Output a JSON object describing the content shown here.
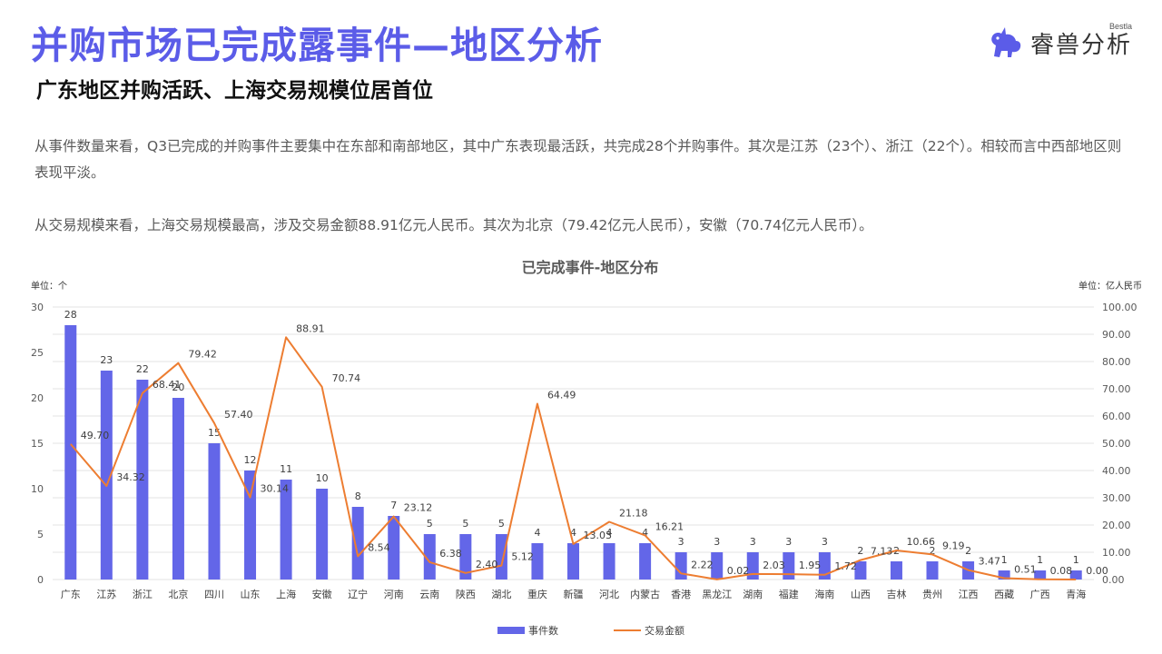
{
  "header": {
    "title": "并购市场已完成露事件—地区分析",
    "subtitle": "广东地区并购活跃、上海交易规模位居首位"
  },
  "logo": {
    "brand_small": "Bestla",
    "brand_text": "睿兽分析"
  },
  "body": {
    "paragraph1": "从事件数量来看，Q3已完成的并购事件主要集中在东部和南部地区，其中广东表现最活跃，共完成28个并购事件。其次是江苏（23个）、浙江（22个）。相较而言中西部地区则表现平淡。",
    "paragraph2": "从交易规模来看，上海交易规模最高，涉及交易金额88.91亿元人民币。其次为北京（79.42亿元人民币），安徽（70.74亿元人民币）。"
  },
  "colors": {
    "title": "#5b5ce8",
    "bar": "#6366e8",
    "line": "#ed7d31"
  },
  "chart_data": {
    "type": "bar",
    "title": "已完成事件-地区分布",
    "left_unit": "单位：个",
    "right_unit": "单位：亿人民币",
    "categories": [
      "广东",
      "江苏",
      "浙江",
      "北京",
      "四川",
      "山东",
      "上海",
      "安徽",
      "辽宁",
      "河南",
      "云南",
      "陕西",
      "湖北",
      "重庆",
      "新疆",
      "河北",
      "内蒙古",
      "香港",
      "黑龙江",
      "湖南",
      "福建",
      "海南",
      "山西",
      "吉林",
      "贵州",
      "江西",
      "西藏",
      "广西",
      "青海"
    ],
    "series": [
      {
        "name": "事件数",
        "type": "bar",
        "axis": "left",
        "values": [
          28,
          23,
          22,
          20,
          15,
          12,
          11,
          10,
          8,
          7,
          5,
          5,
          5,
          4,
          4,
          4,
          4,
          3,
          3,
          3,
          3,
          3,
          2,
          2,
          2,
          2,
          1,
          1,
          1
        ],
        "labels": [
          "28",
          "23",
          "22",
          "20",
          "15",
          "12",
          "11",
          "10",
          "8",
          "7",
          "5",
          "5",
          "5",
          "4",
          "4",
          "4",
          "4",
          "3",
          "3",
          "3",
          "3",
          "3",
          "2",
          "2",
          "2",
          "2",
          "1",
          "1",
          "1"
        ]
      },
      {
        "name": "交易金额",
        "type": "line",
        "axis": "right",
        "values": [
          49.7,
          34.32,
          68.41,
          79.42,
          57.4,
          30.14,
          88.91,
          70.74,
          8.54,
          23.12,
          6.38,
          2.4,
          5.12,
          64.49,
          13.03,
          21.18,
          16.21,
          2.22,
          0.02,
          2.03,
          1.95,
          1.72,
          7.13,
          10.66,
          9.19,
          3.47,
          0.51,
          0.08,
          0.0
        ],
        "labels": [
          "49.70",
          "34.32",
          "68.41",
          "79.42",
          "57.40",
          "30.14",
          "88.91",
          "70.74",
          "8.54",
          "23.12",
          "6.38",
          "2.40",
          "5.12",
          "64.49",
          "13.03",
          "21.18",
          "16.21",
          "2.22",
          "0.02",
          "2.03",
          "1.95",
          "1.72",
          "7.13",
          "10.66",
          "9.19",
          "3.47",
          "0.51",
          "0.08",
          "0.00"
        ]
      }
    ],
    "y_left": {
      "min": 0,
      "max": 30,
      "ticks": [
        "0",
        "5",
        "10",
        "15",
        "20",
        "25",
        "30"
      ]
    },
    "y_right": {
      "min": 0,
      "max": 100,
      "ticks": [
        "0.00",
        "10.00",
        "20.00",
        "30.00",
        "40.00",
        "50.00",
        "60.00",
        "70.00",
        "80.00",
        "90.00",
        "100.00"
      ]
    },
    "grid": true,
    "legend_position": "bottom"
  }
}
